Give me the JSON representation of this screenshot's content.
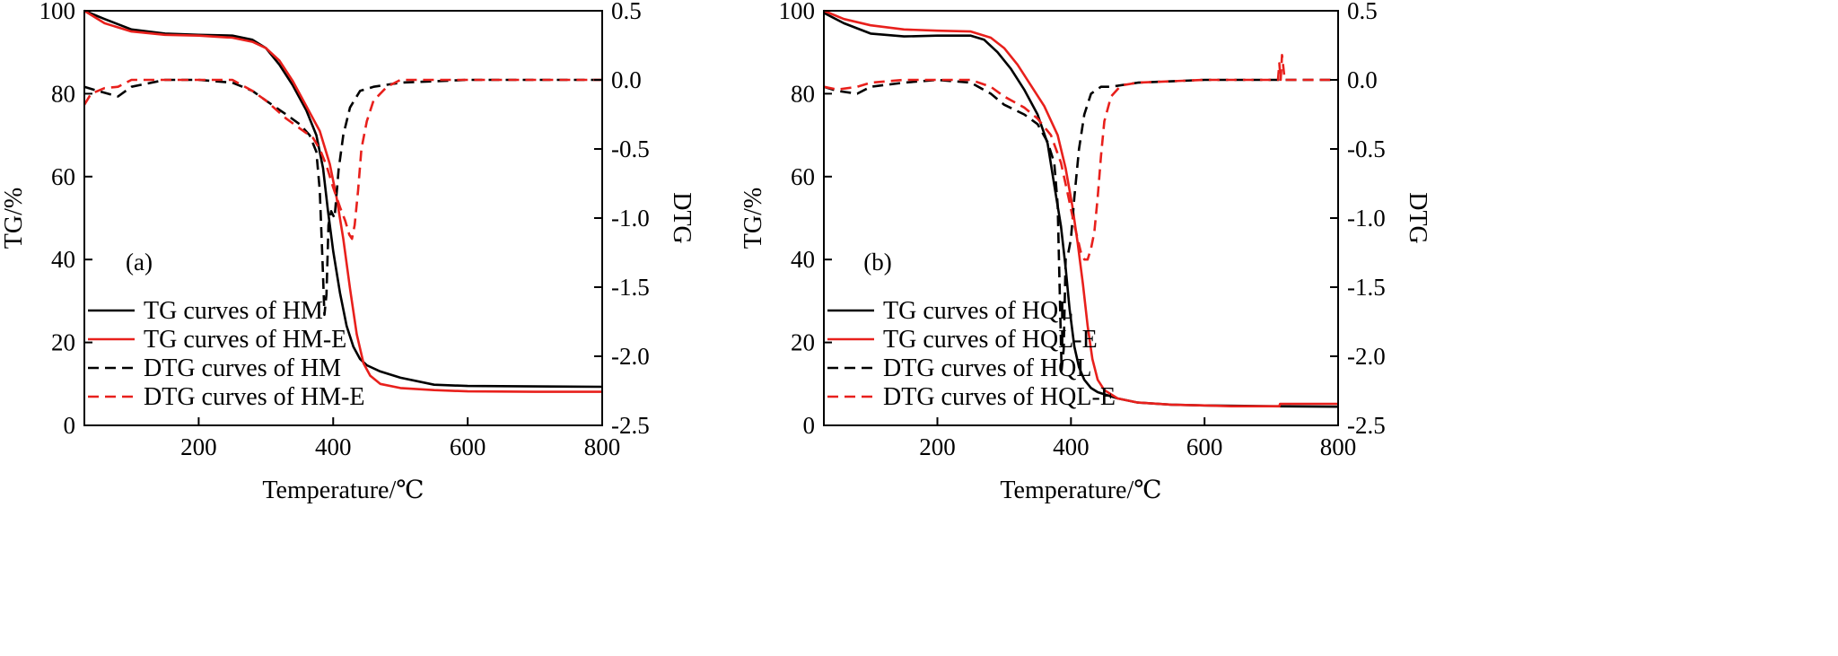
{
  "chart_data": [
    {
      "type": "line",
      "panel_label": "(a)",
      "xlabel": "Temperature/℃",
      "ylabel_left": "TG/%",
      "ylabel_right": "DTG",
      "xlim": [
        30,
        800
      ],
      "ylim_left": [
        0,
        100
      ],
      "ylim_right": [
        -2.5,
        0.5
      ],
      "x_ticks": [
        200,
        400,
        600,
        800
      ],
      "y_left_ticks": [
        0,
        20,
        40,
        60,
        80,
        100
      ],
      "y_right_ticks": [
        -2.5,
        -2.0,
        -1.5,
        -1.0,
        -0.5,
        0.0,
        0.5
      ],
      "y_right_tick_labels": [
        "-2.5",
        "-2.0",
        "-1.5",
        "-1.0",
        "-0.5",
        "0.0",
        "0.5"
      ],
      "legend_position": "bottom-left",
      "series": [
        {
          "name": "TG curves of HM",
          "axis": "left",
          "color": "#000000",
          "dash": "solid",
          "x": [
            30,
            60,
            100,
            150,
            200,
            250,
            280,
            300,
            320,
            340,
            360,
            375,
            385,
            392,
            400,
            410,
            420,
            430,
            440,
            450,
            470,
            500,
            550,
            600,
            700,
            800
          ],
          "y": [
            100,
            98,
            95.5,
            94.5,
            94.2,
            94,
            93,
            91,
            87,
            82,
            76,
            70,
            62,
            52,
            42,
            32,
            24,
            19,
            16,
            14.5,
            13,
            11.5,
            9.8,
            9.5,
            9.4,
            9.3
          ]
        },
        {
          "name": "TG curves of HM-E",
          "axis": "left",
          "color": "#e8201c",
          "dash": "solid",
          "x": [
            30,
            60,
            100,
            150,
            200,
            250,
            280,
            300,
            320,
            340,
            360,
            380,
            395,
            405,
            415,
            425,
            435,
            445,
            455,
            470,
            500,
            550,
            600,
            700,
            800
          ],
          "y": [
            100,
            97,
            95,
            94.2,
            94,
            93.5,
            92.5,
            91,
            88,
            83,
            77,
            71,
            63,
            55,
            45,
            33,
            22,
            15,
            12,
            10,
            9,
            8.5,
            8.2,
            8.1,
            8.1
          ]
        },
        {
          "name": "DTG curves of HM",
          "axis": "right",
          "color": "#000000",
          "dash": "dashed",
          "x": [
            30,
            50,
            80,
            100,
            150,
            200,
            250,
            280,
            300,
            330,
            350,
            365,
            375,
            380,
            384,
            387,
            390,
            393,
            397,
            402,
            408,
            415,
            425,
            440,
            460,
            500,
            600,
            700,
            800
          ],
          "y": [
            -0.05,
            -0.08,
            -0.12,
            -0.05,
            0.0,
            0.0,
            -0.02,
            -0.08,
            -0.15,
            -0.25,
            -0.32,
            -0.4,
            -0.52,
            -0.8,
            -1.3,
            -1.7,
            -1.55,
            -1.05,
            -0.95,
            -1.0,
            -0.65,
            -0.4,
            -0.2,
            -0.08,
            -0.05,
            -0.02,
            0.0,
            0.0,
            0.0
          ]
        },
        {
          "name": "DTG curves of HM-E",
          "axis": "right",
          "color": "#e8201c",
          "dash": "dashed",
          "x": [
            30,
            40,
            60,
            80,
            100,
            150,
            200,
            250,
            280,
            300,
            330,
            350,
            370,
            380,
            390,
            400,
            410,
            418,
            424,
            428,
            432,
            437,
            442,
            450,
            460,
            480,
            500,
            600,
            700,
            800
          ],
          "y": [
            -0.18,
            -0.1,
            -0.06,
            -0.05,
            0.0,
            0.0,
            0.0,
            0.0,
            -0.08,
            -0.15,
            -0.28,
            -0.35,
            -0.42,
            -0.5,
            -0.62,
            -0.78,
            -0.92,
            -1.02,
            -1.12,
            -1.15,
            -1.05,
            -0.8,
            -0.5,
            -0.3,
            -0.15,
            -0.05,
            0.0,
            0.0,
            0.0,
            0.0
          ]
        }
      ]
    },
    {
      "type": "line",
      "panel_label": "(b)",
      "xlabel": "Temperature/℃",
      "ylabel_left": "TG/%",
      "ylabel_right": "DTG",
      "xlim": [
        30,
        800
      ],
      "ylim_left": [
        0,
        100
      ],
      "ylim_right": [
        -2.5,
        0.5
      ],
      "x_ticks": [
        200,
        400,
        600,
        800
      ],
      "y_left_ticks": [
        0,
        20,
        40,
        60,
        80,
        100
      ],
      "y_right_ticks": [
        -2.5,
        -2.0,
        -1.5,
        -1.0,
        -0.5,
        0.0,
        0.5
      ],
      "y_right_tick_labels": [
        "-2.5",
        "-2.0",
        "-1.5",
        "-1.0",
        "-0.5",
        "0.0",
        "0.5"
      ],
      "legend_position": "bottom-left",
      "series": [
        {
          "name": "TG curves of HQL",
          "axis": "left",
          "color": "#000000",
          "dash": "solid",
          "x": [
            30,
            60,
            100,
            150,
            200,
            250,
            270,
            290,
            310,
            330,
            350,
            365,
            375,
            385,
            392,
            398,
            405,
            412,
            420,
            430,
            440,
            450,
            470,
            500,
            550,
            600,
            700,
            800
          ],
          "y": [
            99.5,
            97,
            94.5,
            93.8,
            94,
            94,
            93,
            90,
            86,
            81,
            75,
            68,
            58,
            48,
            38,
            28,
            19,
            14,
            11,
            9,
            8,
            7.5,
            6.5,
            5.5,
            5,
            4.8,
            4.6,
            4.5
          ]
        },
        {
          "name": "TG curves of HQL-E",
          "axis": "left",
          "color": "#e8201c",
          "dash": "solid",
          "x": [
            30,
            60,
            100,
            150,
            200,
            250,
            280,
            300,
            320,
            340,
            360,
            380,
            392,
            402,
            410,
            418,
            425,
            432,
            440,
            450,
            470,
            500,
            550,
            600,
            640,
            700,
            712,
            713,
            800
          ],
          "y": [
            100,
            98,
            96.5,
            95.5,
            95.2,
            95,
            93.5,
            91,
            87,
            82,
            77,
            70,
            62,
            53,
            44,
            34,
            24,
            16,
            11,
            8.5,
            6.5,
            5.5,
            5.0,
            4.8,
            4.6,
            4.6,
            4.6,
            5.2,
            5.2
          ]
        },
        {
          "name": "DTG curves of HQL",
          "axis": "right",
          "color": "#000000",
          "dash": "dashed",
          "x": [
            30,
            50,
            80,
            100,
            150,
            200,
            250,
            280,
            300,
            330,
            350,
            365,
            375,
            380,
            383,
            386,
            389,
            392,
            396,
            400,
            405,
            412,
            420,
            430,
            445,
            460,
            500,
            600,
            700,
            800
          ],
          "y": [
            -0.05,
            -0.08,
            -0.1,
            -0.05,
            -0.02,
            0.0,
            -0.02,
            -0.1,
            -0.18,
            -0.25,
            -0.32,
            -0.45,
            -0.6,
            -0.9,
            -1.5,
            -2.1,
            -1.95,
            -1.3,
            -1.25,
            -1.15,
            -0.85,
            -0.5,
            -0.25,
            -0.1,
            -0.05,
            -0.05,
            -0.02,
            0.0,
            0.0,
            0.0
          ]
        },
        {
          "name": "DTG curves of HQL-E",
          "axis": "right",
          "color": "#e8201c",
          "dash": "dashed",
          "x": [
            30,
            50,
            80,
            100,
            150,
            200,
            250,
            280,
            300,
            330,
            350,
            370,
            385,
            395,
            405,
            415,
            420,
            425,
            430,
            435,
            440,
            445,
            450,
            460,
            475,
            500,
            600,
            700,
            710,
            712,
            714,
            716,
            720,
            800
          ],
          "y": [
            -0.05,
            -0.07,
            -0.05,
            -0.02,
            0.0,
            0.0,
            0.0,
            -0.05,
            -0.12,
            -0.2,
            -0.28,
            -0.4,
            -0.6,
            -0.82,
            -1.05,
            -1.25,
            -1.3,
            -1.3,
            -1.22,
            -1.1,
            -0.85,
            -0.55,
            -0.3,
            -0.12,
            -0.04,
            -0.02,
            0.0,
            0.0,
            0.0,
            0.12,
            0.0,
            0.18,
            0.0,
            0.0
          ]
        }
      ]
    }
  ]
}
